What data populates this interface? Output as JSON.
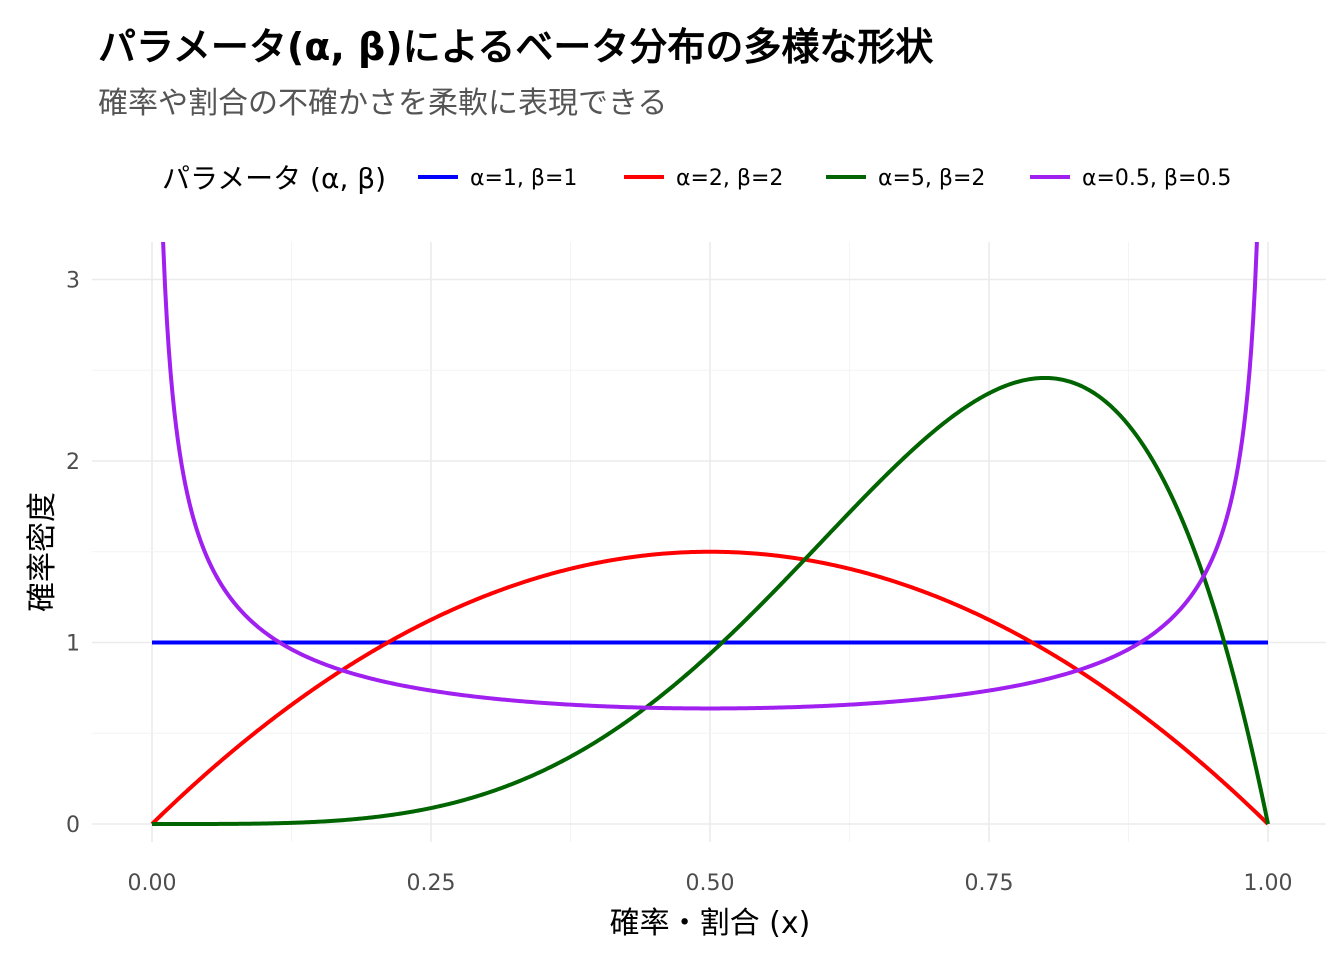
{
  "title": "パラメータ(α, β)によるベータ分布の多様な形状",
  "subtitle": "確率や割合の不確かさを柔軟に表現できる",
  "chart_data": {
    "type": "line",
    "xlabel": "確率・割合 (x)",
    "ylabel": "確率密度",
    "xlim": [
      0,
      1
    ],
    "ylim": [
      0,
      3.2
    ],
    "x_ticks": [
      "0.00",
      "0.25",
      "0.50",
      "0.75",
      "1.00"
    ],
    "x_tick_values": [
      0,
      0.25,
      0.5,
      0.75,
      1.0
    ],
    "y_ticks": [
      "0",
      "1",
      "2",
      "3"
    ],
    "y_tick_values": [
      0,
      1,
      2,
      3
    ],
    "grid": true,
    "legend": {
      "title": "パラメータ (α, β)",
      "position": "top"
    },
    "series": [
      {
        "name": "α=1, β=1",
        "color": "#0000FF",
        "alpha": 1,
        "beta": 1
      },
      {
        "name": "α=2, β=2",
        "color": "#FF0000",
        "alpha": 2,
        "beta": 2
      },
      {
        "name": "α=5, β=2",
        "color": "#006400",
        "alpha": 5,
        "beta": 2
      },
      {
        "name": "α=0.5, β=0.5",
        "color": "#A020F0",
        "alpha": 0.5,
        "beta": 0.5
      }
    ]
  }
}
